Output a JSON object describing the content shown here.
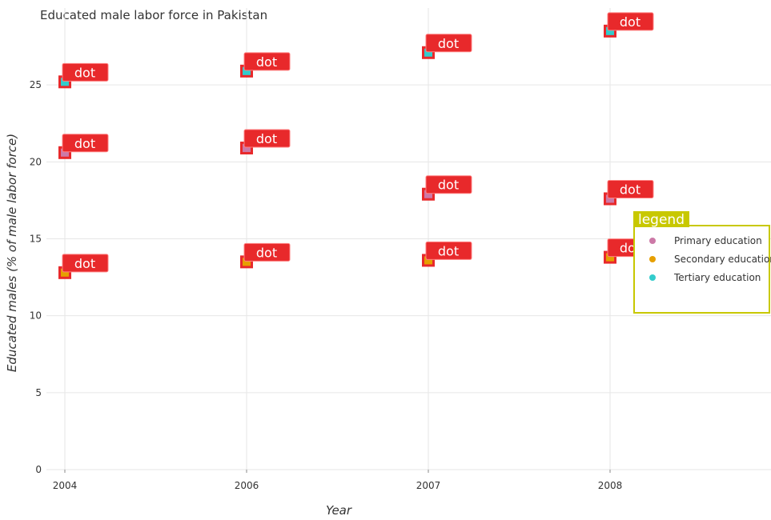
{
  "chart_data": {
    "type": "scatter",
    "title": "Educated male labor force in Pakistan",
    "xlabel": "Year",
    "ylabel": "Educated males (% of male labor force)",
    "categories": [
      "2004",
      "2006",
      "2007",
      "2008"
    ],
    "yticks": [
      0,
      5,
      10,
      15,
      20,
      25
    ],
    "ylim": [
      0,
      30
    ],
    "grid": true,
    "legend_title": "legend",
    "legend_position": "right",
    "point_label": "dot",
    "series": [
      {
        "name": "Primary education",
        "color": "#cc79a7",
        "values": [
          20.6,
          20.9,
          17.9,
          17.6
        ]
      },
      {
        "name": "Secondary education",
        "color": "#e69f00",
        "values": [
          12.8,
          13.5,
          13.6,
          13.8
        ]
      },
      {
        "name": "Tertiary education",
        "color": "#33cccc",
        "values": [
          25.2,
          25.9,
          27.1,
          28.5
        ]
      }
    ]
  }
}
